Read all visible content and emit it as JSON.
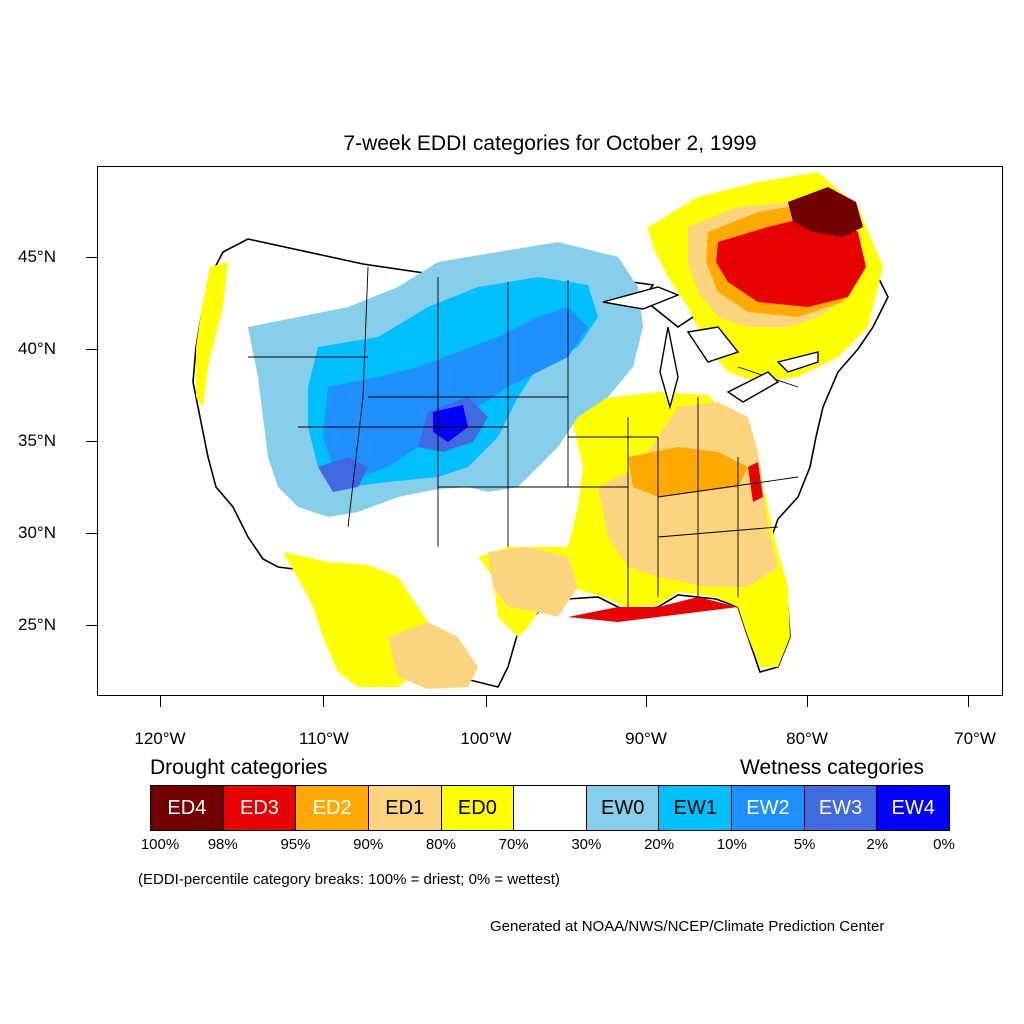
{
  "title": "7-week EDDI categories for October 2, 1999",
  "axes": {
    "lat_labels": [
      "45°N",
      "40°N",
      "35°N",
      "30°N",
      "25°N"
    ],
    "lon_labels": [
      "120°W",
      "110°W",
      "100°W",
      "90°W",
      "80°W",
      "70°W"
    ]
  },
  "legend": {
    "drought_heading": "Drought categories",
    "wetness_heading": "Wetness categories",
    "categories": [
      {
        "label": "ED4",
        "color": "#730000",
        "text_color": "#ffffff"
      },
      {
        "label": "ED3",
        "color": "#e60000",
        "text_color": "#ffffff"
      },
      {
        "label": "ED2",
        "color": "#ffaa00",
        "text_color": "#ffffff"
      },
      {
        "label": "ED1",
        "color": "#fcd37f",
        "text_color": "#000000"
      },
      {
        "label": "ED0",
        "color": "#ffff00",
        "text_color": "#000000"
      },
      {
        "label": "",
        "color": "#ffffff",
        "text_color": "#000000"
      },
      {
        "label": "EW0",
        "color": "#87ceeb",
        "text_color": "#000000"
      },
      {
        "label": "EW1",
        "color": "#00bfff",
        "text_color": "#000000"
      },
      {
        "label": "EW2",
        "color": "#1e90ff",
        "text_color": "#ffffff"
      },
      {
        "label": "EW3",
        "color": "#4169e1",
        "text_color": "#ffffff"
      },
      {
        "label": "EW4",
        "color": "#0000ff",
        "text_color": "#ffffff"
      }
    ],
    "breaks": [
      "100%",
      "98%",
      "95%",
      "90%",
      "80%",
      "70%",
      "30%",
      "20%",
      "10%",
      "5%",
      "2%",
      "0%"
    ]
  },
  "note": "(EDDI-percentile category breaks: 100% = driest; 0% = wettest)",
  "credit": "Generated at NOAA/NWS/NCEP/Climate Prediction Center"
}
